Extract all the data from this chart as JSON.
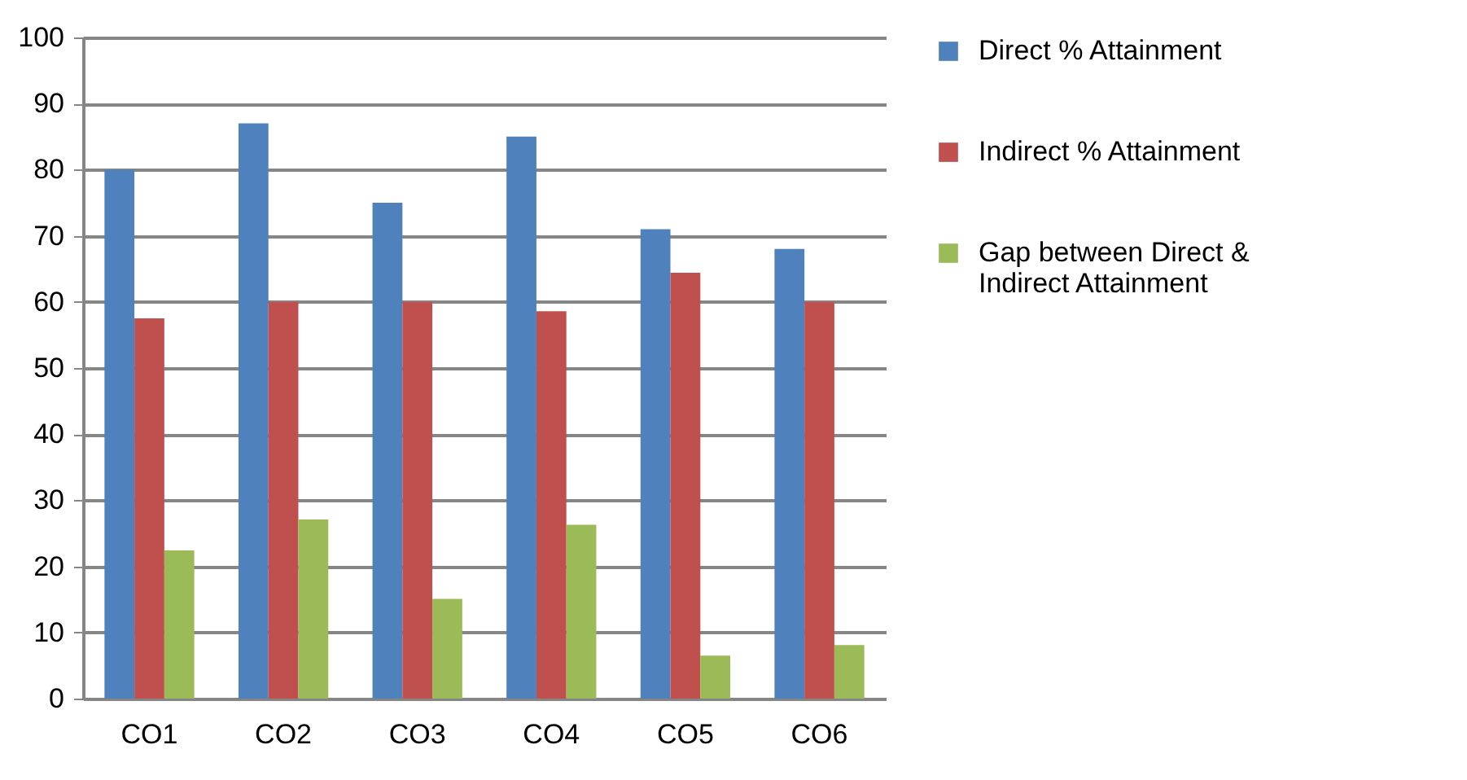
{
  "chart_data": {
    "type": "bar",
    "categories": [
      "CO1",
      "CO2",
      "CO3",
      "CO4",
      "CO5",
      "CO6"
    ],
    "series": [
      {
        "name": "Direct % Attainment",
        "color": "#4f81bd",
        "values": [
          80,
          87,
          75,
          85,
          71,
          68
        ]
      },
      {
        "name": "Indirect % Attainment",
        "color": "#c0504d",
        "values": [
          57.5,
          60,
          60,
          58.6,
          64.4,
          60
        ]
      },
      {
        "name": "Gap between Direct & Indirect Attainment",
        "color": "#9bbb59",
        "values": [
          22.4,
          27.1,
          15.1,
          26.3,
          6.5,
          8.1
        ]
      }
    ],
    "ylim": [
      0,
      100
    ],
    "yticks": [
      0,
      10,
      20,
      30,
      40,
      50,
      60,
      70,
      80,
      90,
      100
    ],
    "grid": "y",
    "legend": "right"
  }
}
